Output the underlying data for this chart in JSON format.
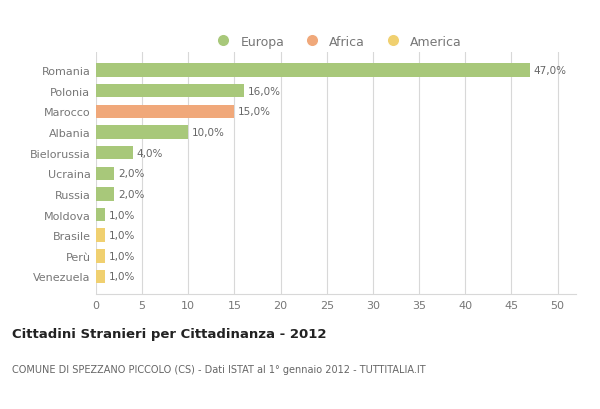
{
  "countries": [
    "Romania",
    "Polonia",
    "Marocco",
    "Albania",
    "Bielorussia",
    "Ucraina",
    "Russia",
    "Moldova",
    "Brasile",
    "Perù",
    "Venezuela"
  ],
  "values": [
    47.0,
    16.0,
    15.0,
    10.0,
    4.0,
    2.0,
    2.0,
    1.0,
    1.0,
    1.0,
    1.0
  ],
  "categories": [
    "Europa",
    "Europa",
    "Africa",
    "Europa",
    "Europa",
    "Europa",
    "Europa",
    "Europa",
    "America",
    "America",
    "America"
  ],
  "colors": {
    "Europa": "#a8c87a",
    "Africa": "#f0a87a",
    "America": "#f0d070"
  },
  "bar_height": 0.65,
  "xlim": [
    0,
    52
  ],
  "xticks": [
    0,
    5,
    10,
    15,
    20,
    25,
    30,
    35,
    40,
    45,
    50
  ],
  "title": "Cittadini Stranieri per Cittadinanza - 2012",
  "subtitle": "COMUNE DI SPEZZANO PICCOLO (CS) - Dati ISTAT al 1° gennaio 2012 - TUTTITALIA.IT",
  "bg_color": "#ffffff",
  "grid_color": "#d8d8d8",
  "label_color": "#777777",
  "value_label_color": "#666666",
  "title_color": "#222222",
  "subtitle_color": "#666666"
}
